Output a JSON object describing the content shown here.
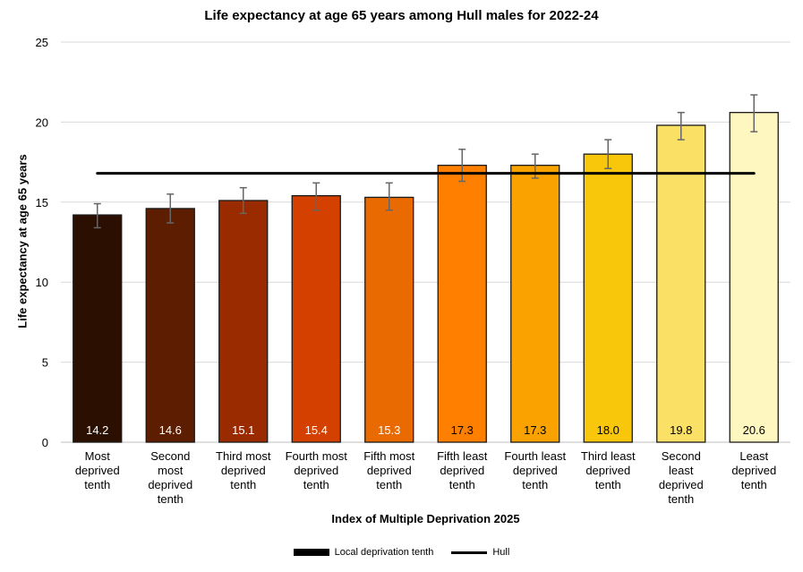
{
  "chart_data": {
    "type": "bar",
    "title": "Life expectancy at age 65 years among Hull males for 2022-24",
    "xlabel": "Index of Multiple Deprivation 2025",
    "ylabel": "Life expectancy at age 65 years",
    "ylim": [
      0,
      25
    ],
    "yticks": [
      "0",
      "5",
      "10",
      "15",
      "20",
      "25"
    ],
    "grid": true,
    "legend_position": "bottom",
    "categories": [
      "Most\ndeprived\ntenth",
      "Second\nmost\ndeprived\ntenth",
      "Third most\ndeprived\ntenth",
      "Fourth most\ndeprived\ntenth",
      "Fifth most\ndeprived\ntenth",
      "Fifth least\ndeprived\ntenth",
      "Fourth least\ndeprived\ntenth",
      "Third least\ndeprived\ntenth",
      "Second\nleast\ndeprived\ntenth",
      "Least\ndeprived\ntenth"
    ],
    "series": [
      {
        "name": "Local deprivation tenth",
        "values": [
          14.2,
          14.6,
          15.1,
          15.4,
          15.3,
          17.3,
          17.3,
          18.0,
          19.8,
          20.6
        ],
        "data_labels": [
          "14.2",
          "14.6",
          "15.1",
          "15.4",
          "15.3",
          "17.3",
          "17.3",
          "18.0",
          "19.8",
          "20.6"
        ],
        "ci_lower": [
          13.4,
          13.7,
          14.3,
          14.5,
          14.5,
          16.3,
          16.5,
          17.1,
          18.9,
          19.4
        ],
        "ci_upper": [
          14.9,
          15.5,
          15.9,
          16.2,
          16.2,
          18.3,
          18.0,
          18.9,
          20.6,
          21.7
        ],
        "colors": [
          "#2b0f00",
          "#5c1d00",
          "#9a2a00",
          "#d44000",
          "#e86a00",
          "#ff8000",
          "#faa300",
          "#f8c60a",
          "#fbe066",
          "#fff7c0"
        ],
        "label_colors": [
          "#ffffff",
          "#ffffff",
          "#ffffff",
          "#ffffff",
          "#ffffff",
          "#000000",
          "#000000",
          "#000000",
          "#000000",
          "#000000"
        ]
      },
      {
        "name": "Hull",
        "type": "line",
        "value": 16.8,
        "color": "#000000"
      }
    ]
  }
}
